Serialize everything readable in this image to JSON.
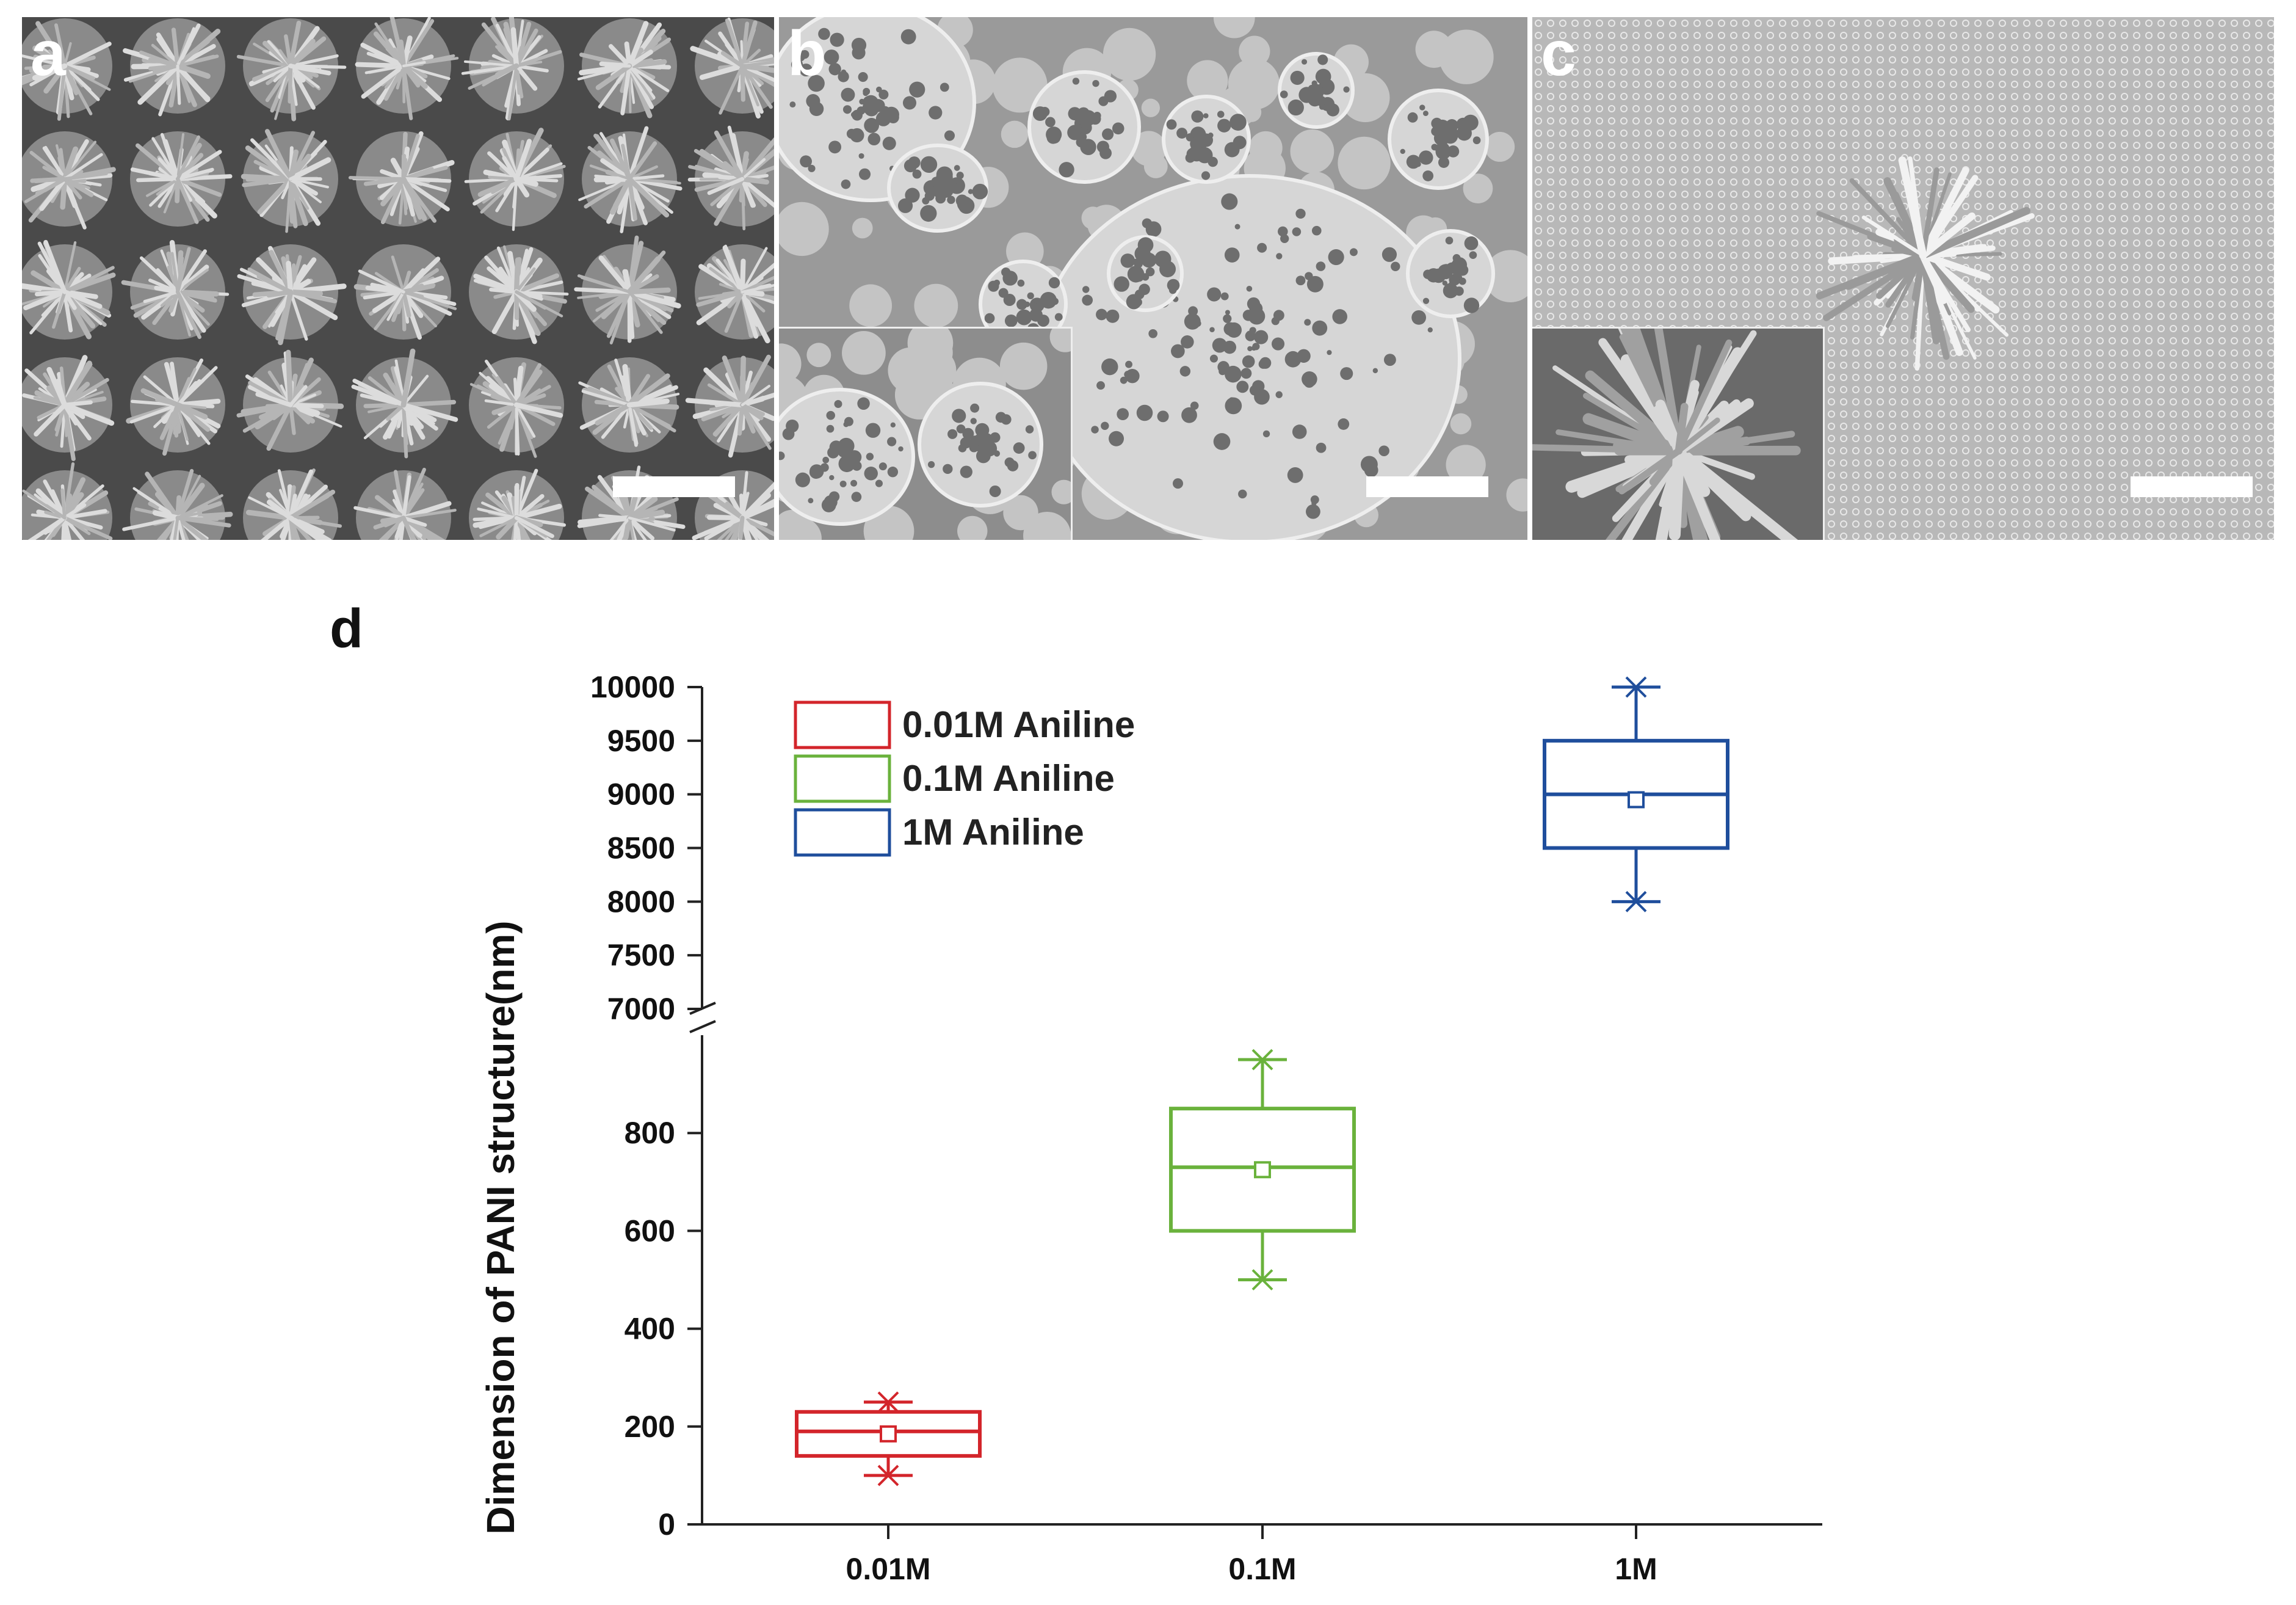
{
  "panels": [
    {
      "letter": "a"
    },
    {
      "letter": "b"
    },
    {
      "letter": "c"
    }
  ],
  "chart_data": {
    "type": "box",
    "panel_label": "d",
    "ylabel": "Dimension of PANI structure(nm)",
    "xlabel": "",
    "categories": [
      "0.01M",
      "0.1M",
      "1M"
    ],
    "legend": [
      {
        "label": "0.01M Aniline",
        "color": "#d3252b"
      },
      {
        "label": "0.1M Aniline",
        "color": "#6ab23c"
      },
      {
        "label": "1M Aniline",
        "color": "#1f4e9c"
      }
    ],
    "legend_position": "top-left",
    "axis_break": {
      "lower_range": [
        0,
        1000
      ],
      "upper_range": [
        7000,
        10000
      ]
    },
    "lower_ticks": [
      "0",
      "200",
      "400",
      "600",
      "800"
    ],
    "upper_ticks": [
      "7000",
      "7500",
      "8000",
      "8500",
      "9000",
      "9500",
      "10000"
    ],
    "series": [
      {
        "name": "0.01M Aniline",
        "category": "0.01M",
        "min": 100,
        "q1": 140,
        "median": 190,
        "mean": 185,
        "q3": 230,
        "max": 250
      },
      {
        "name": "0.1M Aniline",
        "category": "0.1M",
        "min": 500,
        "q1": 600,
        "median": 730,
        "mean": 725,
        "q3": 850,
        "max": 950
      },
      {
        "name": "1M Aniline",
        "category": "1M",
        "min": 8000,
        "q1": 8500,
        "median": 9000,
        "mean": 8950,
        "q3": 9500,
        "max": 10000
      }
    ]
  }
}
